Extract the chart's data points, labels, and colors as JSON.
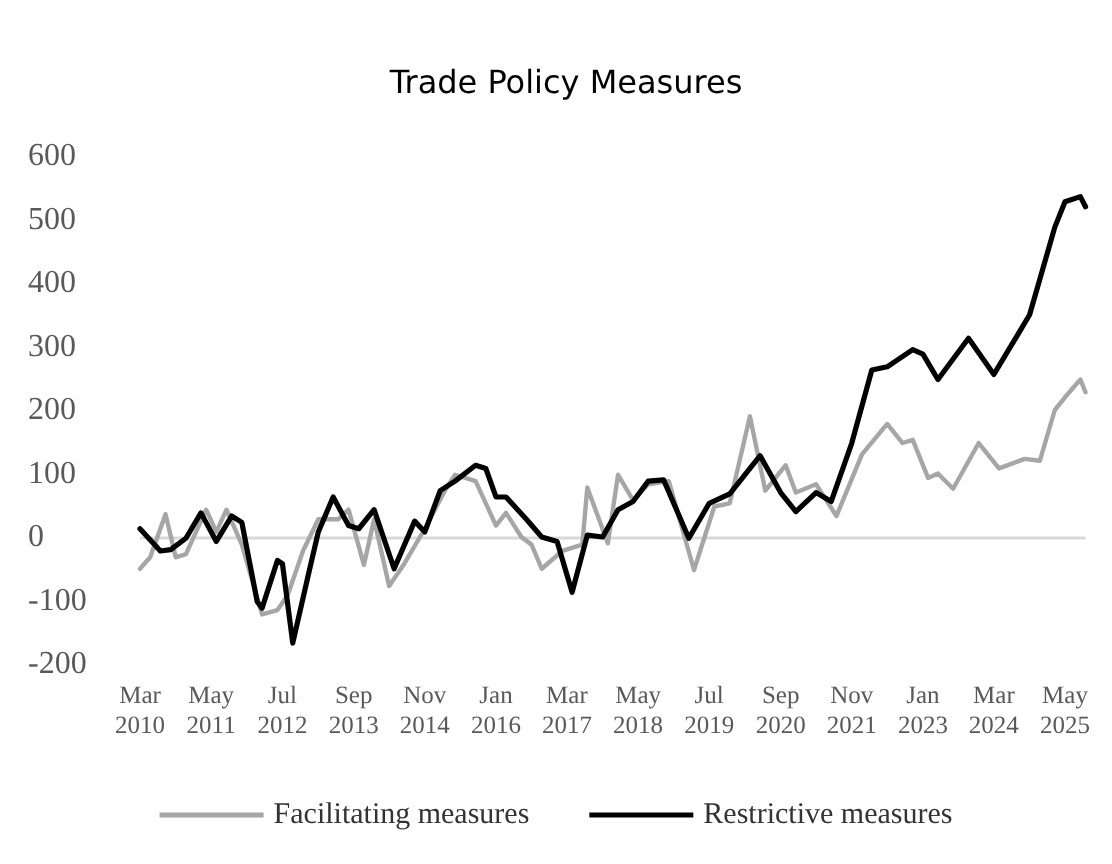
{
  "chart_data": {
    "type": "line",
    "title": "Trade Policy Measures",
    "xlim": [
      "2010-03",
      "2025-09"
    ],
    "xticks": [
      {
        "value": "2010-03",
        "label": "Mar 2010"
      },
      {
        "value": "2011-05",
        "label": "May 2011"
      },
      {
        "value": "2012-07",
        "label": "Jul 2012"
      },
      {
        "value": "2013-09",
        "label": "Sep 2013"
      },
      {
        "value": "2014-11",
        "label": "Nov 2014"
      },
      {
        "value": "2016-01",
        "label": "Jan 2016"
      },
      {
        "value": "2017-03",
        "label": "Mar 2017"
      },
      {
        "value": "2018-05",
        "label": "May 2018"
      },
      {
        "value": "2019-07",
        "label": "Jul 2019"
      },
      {
        "value": "2020-09",
        "label": "Sep 2020"
      },
      {
        "value": "2021-11",
        "label": "Nov 2021"
      },
      {
        "value": "2023-01",
        "label": "Jan 2023"
      },
      {
        "value": "2024-03",
        "label": "Mar 2024"
      },
      {
        "value": "2025-05",
        "label": "May 2025"
      }
    ],
    "ylim": [
      -200,
      600
    ],
    "yticks": [
      -200,
      -100,
      0,
      100,
      200,
      300,
      400,
      500,
      600
    ],
    "grid": false,
    "legend": "bottom",
    "marker": "none",
    "line_style": "solid",
    "ref_lines": [
      {
        "axis": "y",
        "value": 0,
        "color": "#d9d9d9"
      }
    ],
    "series": [
      {
        "name": "Facilitating measures",
        "color": "#a6a6a6",
        "x": [
          "2010-03",
          "2010-05",
          "2010-08",
          "2010-10",
          "2010-12",
          "2011-04",
          "2011-06",
          "2011-08",
          "2011-11",
          "2012-03",
          "2012-06",
          "2012-08",
          "2012-11",
          "2013-02",
          "2013-06",
          "2013-08",
          "2013-11",
          "2014-01",
          "2014-04",
          "2014-07",
          "2014-11",
          "2015-03",
          "2015-05",
          "2015-09",
          "2015-11",
          "2016-01",
          "2016-03",
          "2016-06",
          "2016-08",
          "2016-10",
          "2017-02",
          "2017-06",
          "2017-07",
          "2017-11",
          "2018-01",
          "2018-04",
          "2018-07",
          "2018-11",
          "2019-04",
          "2019-08",
          "2019-11",
          "2020-03",
          "2020-06",
          "2020-10",
          "2020-12",
          "2021-04",
          "2021-08",
          "2022-01",
          "2022-06",
          "2022-09",
          "2022-11",
          "2023-02",
          "2023-04",
          "2023-07",
          "2023-12",
          "2024-04",
          "2024-09",
          "2024-12",
          "2025-03",
          "2025-05",
          "2025-08",
          "2025-09"
        ],
        "values": [
          -50,
          -32,
          36,
          -32,
          -27,
          43,
          8,
          43,
          -12,
          -122,
          -115,
          -92,
          -22,
          28,
          28,
          43,
          -44,
          28,
          -77,
          -42,
          13,
          73,
          98,
          88,
          53,
          18,
          38,
          0,
          -12,
          -50,
          -22,
          -12,
          78,
          -10,
          98,
          58,
          83,
          88,
          -52,
          48,
          53,
          190,
          73,
          113,
          70,
          83,
          33,
          130,
          178,
          148,
          153,
          93,
          100,
          76,
          148,
          108,
          123,
          120,
          200,
          220,
          248,
          228
        ]
      },
      {
        "name": "Restrictive measures",
        "color": "#000000",
        "x": [
          "2010-03",
          "2010-07",
          "2010-09",
          "2010-12",
          "2011-03",
          "2011-06",
          "2011-09",
          "2011-11",
          "2012-02",
          "2012-03",
          "2012-06",
          "2012-07",
          "2012-09",
          "2012-12",
          "2013-02",
          "2013-05",
          "2013-08",
          "2013-10",
          "2014-01",
          "2014-05",
          "2014-09",
          "2014-11",
          "2015-02",
          "2015-05",
          "2015-09",
          "2015-11",
          "2016-01",
          "2016-03",
          "2016-07",
          "2016-10",
          "2017-01",
          "2017-04",
          "2017-07",
          "2017-10",
          "2018-01",
          "2018-04",
          "2018-07",
          "2018-10",
          "2019-03",
          "2019-07",
          "2019-11",
          "2020-05",
          "2020-09",
          "2020-12",
          "2021-04",
          "2021-07",
          "2021-11",
          "2022-03",
          "2022-06",
          "2022-11",
          "2023-01",
          "2023-04",
          "2023-10",
          "2024-03",
          "2024-08",
          "2024-10",
          "2025-03",
          "2025-05",
          "2025-08",
          "2025-09"
        ],
        "values": [
          13,
          -22,
          -20,
          -2,
          38,
          -7,
          33,
          23,
          -102,
          -112,
          -37,
          -42,
          -167,
          -62,
          8,
          63,
          18,
          13,
          43,
          -50,
          25,
          8,
          73,
          88,
          113,
          108,
          63,
          63,
          28,
          0,
          -7,
          -87,
          3,
          0,
          43,
          56,
          88,
          90,
          -2,
          53,
          68,
          128,
          70,
          40,
          70,
          56,
          148,
          263,
          268,
          295,
          288,
          248,
          313,
          256,
          323,
          350,
          488,
          528,
          536,
          520
        ]
      }
    ]
  }
}
